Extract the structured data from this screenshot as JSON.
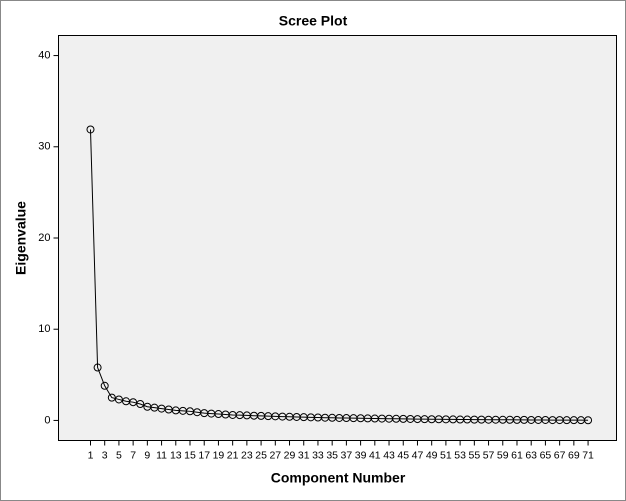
{
  "chart_data": {
    "type": "line",
    "title": "Scree Plot",
    "x_label": "Component Number",
    "y_label": "Eigenvalue",
    "x": [
      1,
      2,
      3,
      4,
      5,
      6,
      7,
      8,
      9,
      10,
      11,
      12,
      13,
      14,
      15,
      16,
      17,
      18,
      19,
      20,
      21,
      22,
      23,
      24,
      25,
      26,
      27,
      28,
      29,
      30,
      31,
      32,
      33,
      34,
      35,
      36,
      37,
      38,
      39,
      40,
      41,
      42,
      43,
      44,
      45,
      46,
      47,
      48,
      49,
      50,
      51,
      52,
      53,
      54,
      55,
      56,
      57,
      58,
      59,
      60,
      61,
      62,
      63,
      64,
      65,
      66,
      67,
      68,
      69,
      70,
      71
    ],
    "values": [
      31.9,
      5.8,
      3.8,
      2.5,
      2.3,
      2.1,
      2.0,
      1.8,
      1.5,
      1.4,
      1.3,
      1.2,
      1.1,
      1.05,
      1.0,
      0.9,
      0.8,
      0.75,
      0.7,
      0.65,
      0.6,
      0.58,
      0.55,
      0.52,
      0.5,
      0.47,
      0.45,
      0.42,
      0.4,
      0.38,
      0.36,
      0.34,
      0.32,
      0.3,
      0.29,
      0.27,
      0.26,
      0.25,
      0.24,
      0.22,
      0.21,
      0.2,
      0.19,
      0.18,
      0.17,
      0.16,
      0.15,
      0.14,
      0.13,
      0.13,
      0.12,
      0.11,
      0.1,
      0.1,
      0.09,
      0.09,
      0.08,
      0.08,
      0.07,
      0.07,
      0.06,
      0.06,
      0.05,
      0.05,
      0.05,
      0.04,
      0.04,
      0.03,
      0.03,
      0.03,
      0.02
    ],
    "color": "#000000",
    "xlim": [
      -3.5,
      75
    ],
    "xticks": [
      1,
      3,
      5,
      7,
      9,
      11,
      13,
      15,
      17,
      19,
      21,
      23,
      25,
      27,
      29,
      31,
      33,
      35,
      37,
      39,
      41,
      43,
      45,
      47,
      49,
      51,
      53,
      55,
      57,
      59,
      61,
      63,
      65,
      67,
      69,
      71
    ],
    "ylim": [
      -2.2,
      42.2
    ],
    "yticks": [
      0,
      10,
      20,
      30,
      40
    ],
    "grid": false
  }
}
